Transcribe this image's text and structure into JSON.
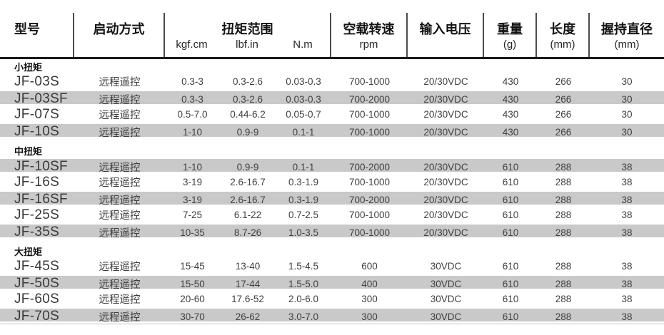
{
  "table": {
    "columns": {
      "model": "型号",
      "start_mode": "启动方式",
      "torque_range": "扭矩范围",
      "torque_units": [
        "kgf.cm",
        "lbf.in",
        "N.m"
      ],
      "no_load_speed": "空载转速",
      "no_load_speed_unit": "rpm",
      "input_voltage": "输入电压",
      "weight": "重量",
      "weight_unit": "(g)",
      "length": "长度",
      "length_unit": "(mm)",
      "grip_diameter": "握持直径",
      "grip_diameter_unit": "(mm)"
    },
    "groups": [
      {
        "label": "小扭矩",
        "rows": [
          {
            "model": "JF-03S",
            "start": "远程遥控",
            "kgfcm": "0.3-3",
            "lbfin": "0.3-2.6",
            "nm": "0.03-0.3",
            "rpm": "700-1000",
            "voltage": "20/30VDC",
            "weight": "430",
            "length": "266",
            "grip": "30",
            "shaded": false
          },
          {
            "model": "JF-03SF",
            "start": "远程遥控",
            "kgfcm": "0.3-3",
            "lbfin": "0.3-2.6",
            "nm": "0.03-0.3",
            "rpm": "700-2000",
            "voltage": "20/30VDC",
            "weight": "430",
            "length": "266",
            "grip": "30",
            "shaded": true
          },
          {
            "model": "JF-07S",
            "start": "远程遥控",
            "kgfcm": "0.5-7.0",
            "lbfin": "0.44-6.2",
            "nm": "0.05-0.7",
            "rpm": "700-1000",
            "voltage": "20/30VDC",
            "weight": "430",
            "length": "266",
            "grip": "30",
            "shaded": false
          },
          {
            "model": "JF-10S",
            "start": "远程遥控",
            "kgfcm": "1-10",
            "lbfin": "0.9-9",
            "nm": "0.1-1",
            "rpm": "700-1000",
            "voltage": "20/30VDC",
            "weight": "430",
            "length": "266",
            "grip": "30",
            "shaded": true
          }
        ]
      },
      {
        "label": "中扭矩",
        "rows": [
          {
            "model": "JF-10SF",
            "start": "远程遥控",
            "kgfcm": "1-10",
            "lbfin": "0.9-9",
            "nm": "0.1-1",
            "rpm": "700-2000",
            "voltage": "20/30VDC",
            "weight": "610",
            "length": "288",
            "grip": "38",
            "shaded": true
          },
          {
            "model": "JF-16S",
            "start": "远程遥控",
            "kgfcm": "3-19",
            "lbfin": "2.6-16.7",
            "nm": "0.3-1.9",
            "rpm": "700-1000",
            "voltage": "20/30VDC",
            "weight": "610",
            "length": "288",
            "grip": "38",
            "shaded": false
          },
          {
            "model": "JF-16SF",
            "start": "远程遥控",
            "kgfcm": "3-19",
            "lbfin": "2.6-16.7",
            "nm": "0.3-1.9",
            "rpm": "700-2000",
            "voltage": "20/30VDC",
            "weight": "610",
            "length": "288",
            "grip": "38",
            "shaded": true
          },
          {
            "model": "JF-25S",
            "start": "远程遥控",
            "kgfcm": "7-25",
            "lbfin": "6.1-22",
            "nm": "0.7-2.5",
            "rpm": "700-1000",
            "voltage": "20/30VDC",
            "weight": "610",
            "length": "288",
            "grip": "38",
            "shaded": false
          },
          {
            "model": "JF-35S",
            "start": "远程遥控",
            "kgfcm": "10-35",
            "lbfin": "8.7-26",
            "nm": "1.0-3.5",
            "rpm": "700-1000",
            "voltage": "20/30VDC",
            "weight": "610",
            "length": "288",
            "grip": "38",
            "shaded": true
          }
        ]
      },
      {
        "label": "大扭矩",
        "rows": [
          {
            "model": "JF-45S",
            "start": "远程遥控",
            "kgfcm": "15-45",
            "lbfin": "13-40",
            "nm": "1.5-4.5",
            "rpm": "600",
            "voltage": "30VDC",
            "weight": "610",
            "length": "288",
            "grip": "38",
            "shaded": false
          },
          {
            "model": "JF-50S",
            "start": "远程遥控",
            "kgfcm": "15-50",
            "lbfin": "17-44",
            "nm": "1.5-5.0",
            "rpm": "400",
            "voltage": "30VDC",
            "weight": "610",
            "length": "288",
            "grip": "38",
            "shaded": true
          },
          {
            "model": "JF-60S",
            "start": "远程遥控",
            "kgfcm": "20-60",
            "lbfin": "17.6-52",
            "nm": "2.0-6.0",
            "rpm": "300",
            "voltage": "30VDC",
            "weight": "610",
            "length": "288",
            "grip": "38",
            "shaded": false
          },
          {
            "model": "JF-70S",
            "start": "远程遥控",
            "kgfcm": "30-70",
            "lbfin": "26-62",
            "nm": "3.0-7.0",
            "rpm": "300",
            "voltage": "30VDC",
            "weight": "610",
            "length": "288",
            "grip": "38",
            "shaded": true
          }
        ]
      }
    ]
  },
  "colors": {
    "row_shaded": "#c9c9c9",
    "header_rule": "#191919",
    "column_divider": "#4b4b4b",
    "text": "#414141"
  }
}
